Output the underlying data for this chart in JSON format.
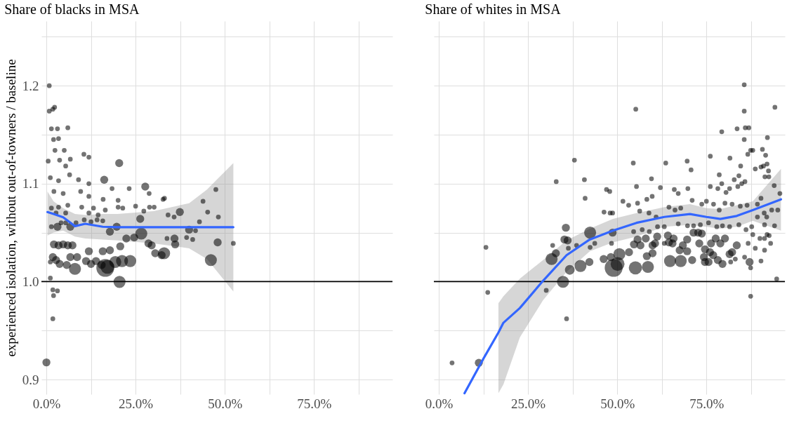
{
  "chart_data": [
    {
      "type": "bubble",
      "title": "Share of blacks in MSA",
      "ylabel": "experienced isolation, without out-of-towners / baseline",
      "xlim": [
        -1.4,
        97
      ],
      "xticks": [
        {
          "value": 0,
          "label": "0.0%"
        },
        {
          "value": 12.5,
          "label": null
        },
        {
          "value": 25,
          "label": "25.0%"
        },
        {
          "value": 37.5,
          "label": null
        },
        {
          "value": 50,
          "label": "50.0%"
        },
        {
          "value": 62.5,
          "label": null
        },
        {
          "value": 75,
          "label": "75.0%"
        },
        {
          "value": 87.5,
          "label": null
        }
      ],
      "ylim": [
        0.885,
        1.266
      ],
      "yticks": [
        0.9,
        {
          "value": 0.95,
          "label": null
        },
        {
          "value": 1.0,
          "label": "1.0"
        },
        {
          "value": 1.05,
          "label": null
        },
        1.1,
        {
          "value": 1.15,
          "label": null
        },
        1.2,
        {
          "value": 1.25,
          "label": null
        }
      ],
      "grid": true,
      "legend": false,
      "ref_lines": [
        {
          "axis": "y",
          "value": 1.0,
          "color": "#000000"
        }
      ],
      "series": [
        {
          "type": "scatter",
          "color": "#000000",
          "x": [
            0.8,
            0.8,
            1.8,
            2.3,
            1.4,
            3.1,
            6.0,
            2.0,
            3.4,
            2.4,
            5.0,
            0.5,
            3.7,
            6.7,
            5.4,
            10.5,
            11.9,
            20.4,
            1.1,
            3.4,
            6.5,
            9.0,
            11.9,
            16.2,
            18.4,
            23.2,
            27.7,
            28.8,
            2.1,
            4.7,
            9.6,
            11.9,
            15.9,
            20.1,
            25.0,
            32.7,
            33.1,
            28.9,
            30.2,
            47.5,
            43.9,
            45.2,
            48.2,
            37.4,
            34.1,
            35.8,
            26.3,
            27.3,
            42.9,
            40.0,
            41.8,
            39.3,
            41.0,
            35.9,
            33.8,
            36.1,
            52.4,
            48.0,
            46.1,
            33.0,
            32.3,
            30.5,
            29.5,
            28.6,
            26.6,
            24.6,
            22.4,
            20.7,
            23.5,
            21.2,
            19.3,
            17.1,
            16.5,
            20.5,
            15.5,
            13.9,
            12.5,
            11.1,
            8.0,
            5.7,
            3.7,
            6.7,
            8.6,
            6.0,
            7.3,
            4.7,
            3.4,
            2.1,
            11.9,
            15.8,
            17.8,
            1.4,
            3.1,
            4.1,
            5.4,
            6.7,
            8.3,
            10.6,
            12.5,
            14.2,
            15.8,
            17.8,
            19.7,
            1.4,
            3.4,
            6.0,
            9.9,
            13.2,
            16.5,
            20.1,
            21.4,
            2.7,
            5.4,
            11.9,
            14.5,
            1.1,
            1.8,
            2.7,
            1.1,
            1.8,
            3.1,
            2.0,
            0.0,
            1.8
          ],
          "values": [
            1.2,
            1.174,
            1.176,
            1.178,
            1.156,
            1.156,
            1.157,
            1.145,
            1.146,
            1.134,
            1.134,
            1.123,
            1.124,
            1.125,
            1.118,
            1.13,
            1.127,
            1.121,
            1.106,
            1.103,
            1.109,
            1.104,
            1.1,
            1.104,
            1.095,
            1.095,
            1.097,
            1.09,
            1.092,
            1.09,
            1.092,
            1.087,
            1.084,
            1.083,
            1.077,
            1.084,
            1.085,
            1.076,
            1.076,
            1.094,
            1.082,
            1.071,
            1.066,
            1.071,
            1.068,
            1.066,
            1.064,
            1.072,
            1.061,
            1.053,
            1.052,
            1.045,
            1.043,
            1.044,
            1.044,
            1.038,
            1.039,
            1.04,
            1.022,
            1.029,
            1.027,
            1.029,
            1.037,
            1.039,
            1.049,
            1.045,
            1.044,
            1.036,
            1.021,
            1.021,
            1.02,
            1.015,
            1.014,
            0.9997,
            1.017,
            1.021,
            1.018,
            1.021,
            1.013,
            1.017,
            1.018,
            1.025,
            1.025,
            1.037,
            1.037,
            1.038,
            1.037,
            1.038,
            1.031,
            1.031,
            1.032,
            1.056,
            1.056,
            1.06,
            1.06,
            1.056,
            1.06,
            1.063,
            1.061,
            1.063,
            1.062,
            1.051,
            1.056,
            1.075,
            1.076,
            1.078,
            1.076,
            1.075,
            1.073,
            1.076,
            1.075,
            1.07,
            1.07,
            1.07,
            1.068,
            1.02,
            1.025,
            1.022,
            1.0036,
            0.9916,
            0.9905,
            0.9857,
            0.9175,
            0.962
          ],
          "sizes": [
            0.07,
            0.07,
            0.07,
            0.07,
            0.07,
            0.07,
            0.07,
            0.07,
            0.07,
            0.07,
            0.07,
            0.07,
            0.07,
            0.07,
            0.07,
            0.07,
            0.07,
            0.2,
            0.07,
            0.07,
            0.07,
            0.07,
            0.07,
            0.2,
            0.07,
            0.07,
            0.2,
            0.07,
            0.07,
            0.07,
            0.07,
            0.07,
            0.07,
            0.07,
            0.07,
            0.07,
            0.07,
            0.07,
            0.07,
            0.07,
            0.07,
            0.07,
            0.07,
            0.2,
            0.07,
            0.07,
            0.2,
            0.07,
            0.07,
            0.2,
            0.07,
            0.07,
            0.07,
            0.2,
            0.07,
            0.2,
            0.07,
            0.2,
            0.45,
            0.45,
            0.2,
            0.2,
            0.2,
            0.2,
            0.45,
            0.2,
            0.2,
            0.2,
            0.45,
            0.45,
            0.45,
            0.6,
            1,
            0.45,
            0.2,
            0.2,
            0.2,
            0.2,
            0.45,
            0.2,
            0.2,
            0.2,
            0.2,
            0.2,
            0.2,
            0.2,
            0.2,
            0.2,
            0.2,
            0.2,
            0.2,
            0.07,
            0.2,
            0.07,
            0.07,
            0.2,
            0.07,
            0.07,
            0.07,
            0.07,
            0.07,
            0.2,
            0.2,
            0.07,
            0.07,
            0.07,
            0.07,
            0.07,
            0.07,
            0.07,
            0.07,
            0.07,
            0.07,
            0.07,
            0.07,
            0.07,
            0.2,
            0.2,
            0.07,
            0.07,
            0.07,
            0.07,
            0.2,
            0.07
          ]
        },
        {
          "type": "line",
          "color": "#3366ff",
          "x": [
            0.3,
            2,
            4.7,
            8,
            10.9,
            15.8,
            20,
            30,
            40,
            45,
            52.4
          ],
          "values": [
            1.071,
            1.069,
            1.0656,
            1.0566,
            1.059,
            1.056,
            1.0555,
            1.0555,
            1.0555,
            1.0556,
            1.0556
          ],
          "lower": [
            1.047,
            1.05,
            1.052,
            1.046,
            1.044,
            1.043,
            1.042,
            1.039,
            1.034,
            1.023,
            0.99
          ],
          "upper": [
            1.092,
            1.082,
            1.075,
            1.069,
            1.068,
            1.069,
            1.069,
            1.072,
            1.08,
            1.094,
            1.121
          ]
        }
      ]
    },
    {
      "type": "bubble",
      "title": "Share of whites in MSA",
      "xlim": [
        -1.4,
        97
      ],
      "xticks": [
        {
          "value": 0,
          "label": "0.0%"
        },
        {
          "value": 12.5,
          "label": null
        },
        {
          "value": 25,
          "label": "25.0%"
        },
        {
          "value": 37.5,
          "label": null
        },
        {
          "value": 50,
          "label": "50.0%"
        },
        {
          "value": 62.5,
          "label": null
        },
        {
          "value": 75,
          "label": "75.0%"
        },
        {
          "value": 87.5,
          "label": null
        }
      ],
      "ylim": [
        0.885,
        1.266
      ],
      "yticks": [
        0.9,
        {
          "value": 0.95,
          "label": null
        },
        1.0,
        {
          "value": 1.05,
          "label": null
        },
        1.1,
        {
          "value": 1.15,
          "label": null
        },
        1.2,
        {
          "value": 1.25,
          "label": null
        }
      ],
      "grid": true,
      "legend": false,
      "tick_labels": "x",
      "ref_lines": [
        {
          "axis": "y",
          "value": 1.0,
          "color": "#000000"
        }
      ],
      "series": [
        {
          "type": "scatter",
          "color": "#000000",
          "x": [
            85.6,
            85.6,
            94.2,
            55.2,
            85.9,
            86.9,
            83.6,
            79.3,
            85.6,
            92.1,
            86.6,
            87.4,
            88.0,
            90.7,
            91.6,
            81.6,
            76.1,
            38.0,
            54.5,
            63.6,
            69.6,
            70.7,
            84.6,
            88.7,
            90.3,
            91.0,
            92.0,
            92.4,
            84.1,
            91.4,
            92.5,
            78.6,
            32.9,
            40.8,
            59.6,
            55.4,
            62.1,
            66.0,
            67.1,
            69.8,
            76.1,
            78.2,
            79.3,
            80.5,
            81.5,
            82.8,
            83.8,
            84.9,
            85.8,
            94.0,
            95.6,
            95.0,
            93.3,
            94.1,
            94.7,
            87.4,
            47.0,
            47.9,
            41.0,
            46.3,
            48.0,
            48.7,
            51.6,
            53.2,
            55.7,
            58.3,
            59.8,
            56.3,
            58.9,
            60.9,
            64.5,
            66.2,
            67.8,
            71.0,
            73.7,
            75.0,
            77.0,
            78.6,
            80.2,
            82.2,
            84.5,
            86.4,
            89.3,
            90.3,
            91.2,
            91.9,
            89.3,
            54.6,
            57.0,
            59.0,
            61.3,
            63.2,
            67.1,
            69.7,
            71.4,
            73.3,
            75.6,
            77.9,
            79.5,
            81.5,
            84.1,
            86.1,
            87.7,
            91.3,
            92.0,
            90.0,
            91.3,
            88.0,
            92.6,
            86.7,
            88.7,
            91.3,
            93.0,
            85.7,
            87.1,
            87.4,
            90.3,
            81.8,
            83.1,
            81.5,
            83.5,
            82.2,
            79.5,
            78.2,
            76.9,
            75.6,
            74.3,
            74.6,
            76.0,
            73.0,
            74.6,
            76.3,
            78.9,
            80.2,
            77.6,
            71.0,
            69.6,
            67.8,
            67.5,
            64.8,
            65.5,
            64.5,
            68.4,
            71.4,
            72.7,
            73.7,
            69.6,
            65.8,
            64.2,
            63.2,
            59.9,
            59.9,
            61.2,
            60.6,
            58.0,
            58.3,
            58.6,
            55.1,
            54.7,
            56.5,
            55.7,
            53.3,
            50.6,
            50.1,
            49.0,
            48.7,
            48.2,
            46.2,
            48.4,
            42.2,
            39.7,
            36.7,
            34.8,
            31.6,
            32.8,
            36.1,
            35.2,
            35.6,
            42.4,
            43.7,
            42.4,
            38.6,
            36.3,
            31.9,
            30.1,
            13.2,
            13.7,
            3.7,
            11.2,
            35.8
          ],
          "values": [
            1.201,
            1.174,
            1.178,
            1.176,
            1.157,
            1.157,
            1.156,
            1.153,
            1.145,
            1.147,
            1.13,
            1.134,
            1.134,
            1.135,
            1.129,
            1.126,
            1.128,
            1.124,
            1.121,
            1.121,
            1.123,
            1.114,
            1.118,
            1.115,
            1.117,
            1.118,
            1.12,
            1.113,
            1.108,
            1.107,
            1.107,
            1.109,
            1.102,
            1.104,
            1.105,
            1.097,
            1.096,
            1.094,
            1.09,
            1.095,
            1.097,
            1.095,
            1.1,
            1.091,
            1.095,
            1.104,
            1.097,
            1.1,
            1.102,
            1.098,
            1.09,
            1.073,
            1.073,
            1.057,
            1.0027,
            0.985,
            1.094,
            1.092,
            1.085,
            1.071,
            1.07,
            1.07,
            1.082,
            1.078,
            1.08,
            1.084,
            1.087,
            1.072,
            1.07,
            1.066,
            1.076,
            1.073,
            1.075,
            1.083,
            1.079,
            1.082,
            1.079,
            1.073,
            1.08,
            1.079,
            1.077,
            1.078,
            1.079,
            1.085,
            1.07,
            1.066,
            1.066,
            1.051,
            1.053,
            1.051,
            1.056,
            1.056,
            1.059,
            1.057,
            1.057,
            1.058,
            1.06,
            1.056,
            1.057,
            1.056,
            1.058,
            1.053,
            1.056,
            1.058,
            1.048,
            1.044,
            1.044,
            1.048,
            1.047,
            1.039,
            1.034,
            1.032,
            1.039,
            1.025,
            1.02,
            1.014,
            1.021,
            1.02,
            1.023,
            1.028,
            1.037,
            1.03,
            1.018,
            1.022,
            1.027,
            1.02,
            1.025,
            1.02,
            1.03,
            1.039,
            1.033,
            1.039,
            1.039,
            1.044,
            1.044,
            1.022,
            1.031,
            1.021,
            1.032,
            1.021,
            1.039,
            1.04,
            1.037,
            1.05,
            1.05,
            1.049,
            1.043,
            1.044,
            1.047,
            1.039,
            1.037,
            1.029,
            1.046,
            1.039,
            1.044,
            1.026,
            1.015,
            1.014,
            1.038,
            1.037,
            1.043,
            1.03,
            1.028,
            1.018,
            1.014,
            1.05,
            1.025,
            1.023,
            1.039,
            1.02,
            1.016,
            1.012,
            0.9998,
            1.023,
            1.029,
            1.042,
            1.043,
            1.055,
            1.05,
            1.039,
            1.035,
            1.037,
            1.034,
            1.037,
            0.991,
            1.035,
            0.989,
            0.917,
            0.917,
            0.962
          ],
          "sizes": [
            0.07,
            0.07,
            0.07,
            0.07,
            0.07,
            0.07,
            0.07,
            0.07,
            0.07,
            0.07,
            0.07,
            0.07,
            0.07,
            0.07,
            0.07,
            0.07,
            0.07,
            0.07,
            0.07,
            0.07,
            0.07,
            0.07,
            0.07,
            0.07,
            0.07,
            0.07,
            0.07,
            0.07,
            0.07,
            0.07,
            0.07,
            0.07,
            0.07,
            0.07,
            0.07,
            0.07,
            0.07,
            0.07,
            0.07,
            0.07,
            0.07,
            0.07,
            0.07,
            0.07,
            0.07,
            0.07,
            0.07,
            0.07,
            0.07,
            0.07,
            0.07,
            0.07,
            0.07,
            0.07,
            0.07,
            0.07,
            0.07,
            0.07,
            0.07,
            0.07,
            0.07,
            0.07,
            0.07,
            0.07,
            0.07,
            0.07,
            0.07,
            0.07,
            0.07,
            0.07,
            0.07,
            0.07,
            0.07,
            0.07,
            0.07,
            0.07,
            0.07,
            0.07,
            0.07,
            0.07,
            0.07,
            0.07,
            0.07,
            0.07,
            0.07,
            0.07,
            0.07,
            0.07,
            0.07,
            0.07,
            0.07,
            0.07,
            0.07,
            0.07,
            0.07,
            0.07,
            0.07,
            0.07,
            0.07,
            0.07,
            0.07,
            0.07,
            0.07,
            0.07,
            0.07,
            0.07,
            0.07,
            0.07,
            0.07,
            0.07,
            0.07,
            0.07,
            0.07,
            0.07,
            0.2,
            0.07,
            0.07,
            0.07,
            0.07,
            0.2,
            0.2,
            0.2,
            0.2,
            0.2,
            0.2,
            0.2,
            0.2,
            0.2,
            0.2,
            0.2,
            0.2,
            0.2,
            0.2,
            0.2,
            0.2,
            0.2,
            0.2,
            0.45,
            0.2,
            0.45,
            0.2,
            0.2,
            0.2,
            0.2,
            0.2,
            0.2,
            0.2,
            0.2,
            0.2,
            0.07,
            0.2,
            0.2,
            0.2,
            0.2,
            0.2,
            0.2,
            0.45,
            0.55,
            0.2,
            0.2,
            0.2,
            0.2,
            0.45,
            0.6,
            1,
            0.2,
            0.2,
            0.2,
            0.07,
            0.2,
            0.45,
            0.3,
            0.45,
            0.45,
            0.2,
            0.2,
            0.2,
            0.2,
            0.45,
            0.07,
            0.07,
            0.07,
            0.07,
            0.07,
            0.07,
            0.07,
            0.07,
            0.07,
            0.2,
            0.07
          ]
        },
        {
          "type": "line",
          "color": "#3366ff",
          "x": [
            7.2,
            12.6,
            16.7,
            18.1,
            22.7,
            29.2,
            35.8,
            42.3,
            48.8,
            55.4,
            63.2,
            70.4,
            75,
            78.9,
            83.5,
            88,
            95.9
          ],
          "values": [
            0.886,
            0.922,
            0.948,
            0.958,
            0.973,
            1.0008,
            1.027,
            1.043,
            1.052,
            1.06,
            1.066,
            1.069,
            1.066,
            1.064,
            1.067,
            1.073,
            1.084
          ],
          "lower": [
            null,
            null,
            0.886,
            0.895,
            0.943,
            0.981,
            1.01,
            1.031,
            1.04,
            1.046,
            1.056,
            1.058,
            1.056,
            1.054,
            1.056,
            1.062,
            1.052
          ],
          "upper": [
            null,
            null,
            0.978,
            0.985,
            1.003,
            1.022,
            1.042,
            1.054,
            1.064,
            1.07,
            1.076,
            1.079,
            1.075,
            1.074,
            1.078,
            1.082,
            1.115
          ]
        }
      ]
    }
  ]
}
